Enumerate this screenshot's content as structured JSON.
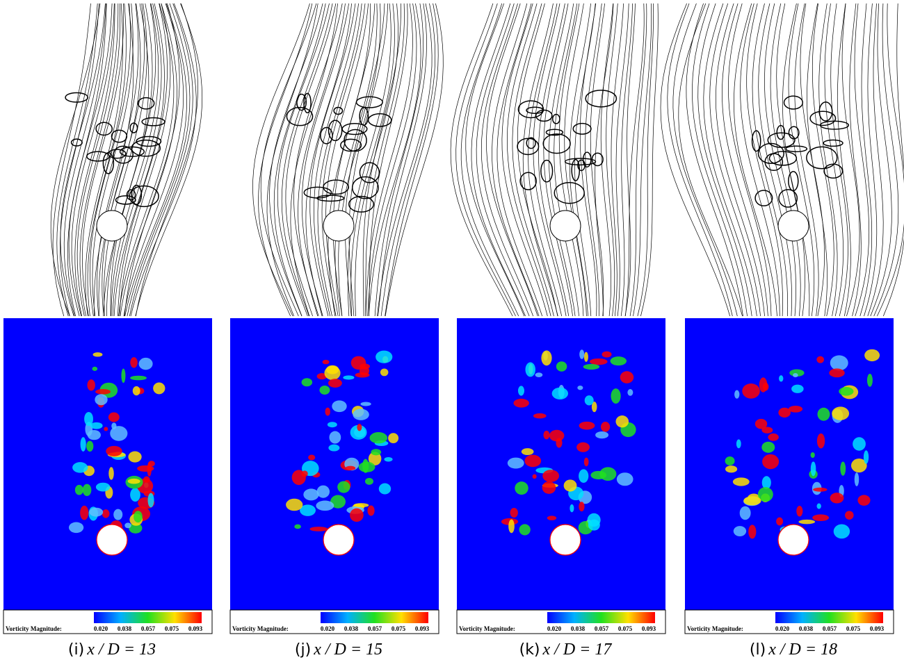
{
  "panels": [
    {
      "label": "(i)",
      "equation": "x / D = 13",
      "colorbar": {
        "title": "Vorticity Magnitude:",
        "ticks": [
          "0.020",
          "0.038",
          "0.057",
          "0.075",
          "0.093"
        ]
      }
    },
    {
      "label": "(j)",
      "equation": "x / D = 15",
      "colorbar": {
        "title": "Vorticity Magnitude:",
        "ticks": [
          "0.020",
          "0.038",
          "0.057",
          "0.075",
          "0.093"
        ]
      }
    },
    {
      "label": "(k)",
      "equation": "x / D = 17",
      "colorbar": {
        "title": "Vorticity Magnitude:",
        "ticks": [
          "0.020",
          "0.038",
          "0.057",
          "0.075",
          "0.093"
        ]
      }
    },
    {
      "label": "(l)",
      "equation": "x / D = 18",
      "colorbar": {
        "title": "Vorticity Magnitude:",
        "ticks": [
          "0.020",
          "0.038",
          "0.057",
          "0.075",
          "0.093"
        ]
      }
    }
  ]
}
